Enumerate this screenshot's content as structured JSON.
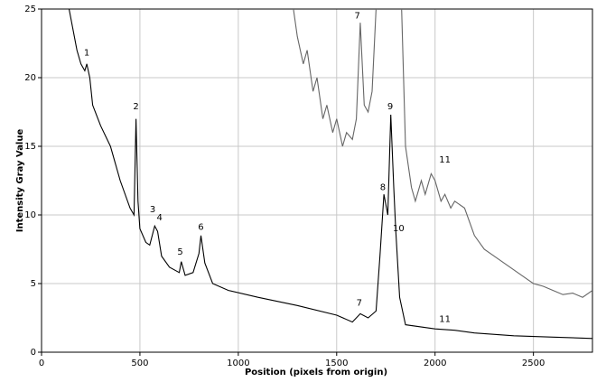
{
  "chart_data": {
    "type": "line",
    "x_label": "Position (pixels from origin)",
    "y_label": "Intensity Gray Value",
    "xlim": [
      0,
      2800
    ],
    "ylim": [
      0,
      25
    ],
    "xticks": [
      0,
      500,
      1000,
      1500,
      2000,
      2500
    ],
    "yticks": [
      0,
      5,
      10,
      15,
      20,
      25
    ],
    "grid": true,
    "series": [
      {
        "color": "#000000",
        "x": [
          140,
          180,
          200,
          220,
          230,
          245,
          260,
          300,
          350,
          400,
          450,
          470,
          480,
          490,
          500,
          530,
          550,
          575,
          590,
          610,
          650,
          700,
          710,
          730,
          770,
          800,
          810,
          830,
          870,
          950,
          1100,
          1300,
          1500,
          1580,
          1620,
          1660,
          1700,
          1720,
          1740,
          1760,
          1775,
          1790,
          1800,
          1820,
          1850,
          2000,
          2100,
          2200,
          2400,
          2600,
          2800
        ],
        "values": [
          25,
          22,
          21,
          20.5,
          21,
          20,
          18,
          16.5,
          15,
          12.5,
          10.5,
          10,
          17,
          11,
          9,
          8,
          7.8,
          9.2,
          8.8,
          7,
          6.2,
          5.8,
          6.6,
          5.6,
          5.8,
          7.2,
          8.5,
          6.5,
          5,
          4.5,
          4,
          3.4,
          2.7,
          2.2,
          2.8,
          2.5,
          3,
          7,
          11.5,
          10,
          17.3,
          12,
          9,
          4,
          2,
          1.7,
          1.6,
          1.4,
          1.2,
          1.1,
          1
        ]
      },
      {
        "color": "#666666",
        "x": [
          1280,
          1300,
          1330,
          1350,
          1380,
          1400,
          1430,
          1450,
          1480,
          1500,
          1530,
          1550,
          1580,
          1600,
          1620,
          1640,
          1660,
          1680,
          1700,
          1720,
          1830,
          1850,
          1880,
          1900,
          1930,
          1950,
          1980,
          2000,
          2030,
          2050,
          2080,
          2100,
          2150,
          2200,
          2250,
          2300,
          2350,
          2400,
          2450,
          2500,
          2550,
          2600,
          2650,
          2700,
          2750,
          2800
        ],
        "values": [
          25,
          23,
          21,
          22,
          19,
          20,
          17,
          18,
          16,
          17,
          15,
          16,
          15.5,
          17,
          24,
          18,
          17.5,
          19,
          25,
          null,
          25,
          15,
          12,
          11,
          12.5,
          11.5,
          13,
          12.5,
          11,
          11.5,
          10.5,
          11,
          10.5,
          8.5,
          7.5,
          7,
          6.5,
          6,
          5.5,
          5,
          4.8,
          4.5,
          4.2,
          4.3,
          4,
          4.5
        ]
      }
    ],
    "annotations": [
      {
        "text": "1",
        "x": 230,
        "y": 21.8
      },
      {
        "text": "2",
        "x": 480,
        "y": 17.9
      },
      {
        "text": "3",
        "x": 565,
        "y": 10.4
      },
      {
        "text": "4",
        "x": 600,
        "y": 9.8
      },
      {
        "text": "5",
        "x": 705,
        "y": 7.3
      },
      {
        "text": "6",
        "x": 810,
        "y": 9.1
      },
      {
        "text": "7",
        "x": 1615,
        "y": 3.6
      },
      {
        "text": "8",
        "x": 1735,
        "y": 12
      },
      {
        "text": "9",
        "x": 1772,
        "y": 17.9
      },
      {
        "text": "10",
        "x": 1815,
        "y": 9
      },
      {
        "text": "11",
        "x": 2050,
        "y": 2.4
      },
      {
        "text": "7",
        "x": 1605,
        "y": 24.5
      },
      {
        "text": "11",
        "x": 2050,
        "y": 14
      }
    ]
  }
}
